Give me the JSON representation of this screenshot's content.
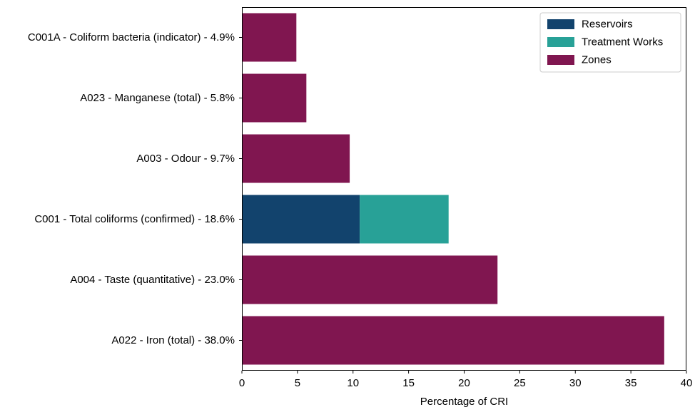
{
  "chart_data": {
    "type": "bar",
    "orientation": "horizontal",
    "stacked": true,
    "title": "",
    "xlabel": "Percentage of CRI",
    "ylabel": "",
    "xlim": [
      0,
      40
    ],
    "xticks": [
      0,
      5,
      10,
      15,
      20,
      25,
      30,
      35,
      40
    ],
    "grid": false,
    "legend_position": "top-right",
    "categories": [
      "C001A - Coliform bacteria (indicator) - 4.9%",
      "A023 - Manganese (total) - 5.8%",
      "A003 - Odour - 9.7%",
      "C001 - Total coliforms (confirmed) - 18.6%",
      "A004 - Taste (quantitative) - 23.0%",
      "A022 - Iron (total) - 38.0%"
    ],
    "series": [
      {
        "name": "Reservoirs",
        "color": "#12436d",
        "values": [
          0,
          0,
          0,
          10.6,
          0,
          0
        ]
      },
      {
        "name": "Treatment Works",
        "color": "#28a197",
        "values": [
          0,
          0,
          0,
          8.0,
          0,
          0
        ]
      },
      {
        "name": "Zones",
        "color": "#801650",
        "values": [
          4.9,
          5.8,
          9.7,
          0,
          23.0,
          38.0
        ]
      }
    ]
  }
}
